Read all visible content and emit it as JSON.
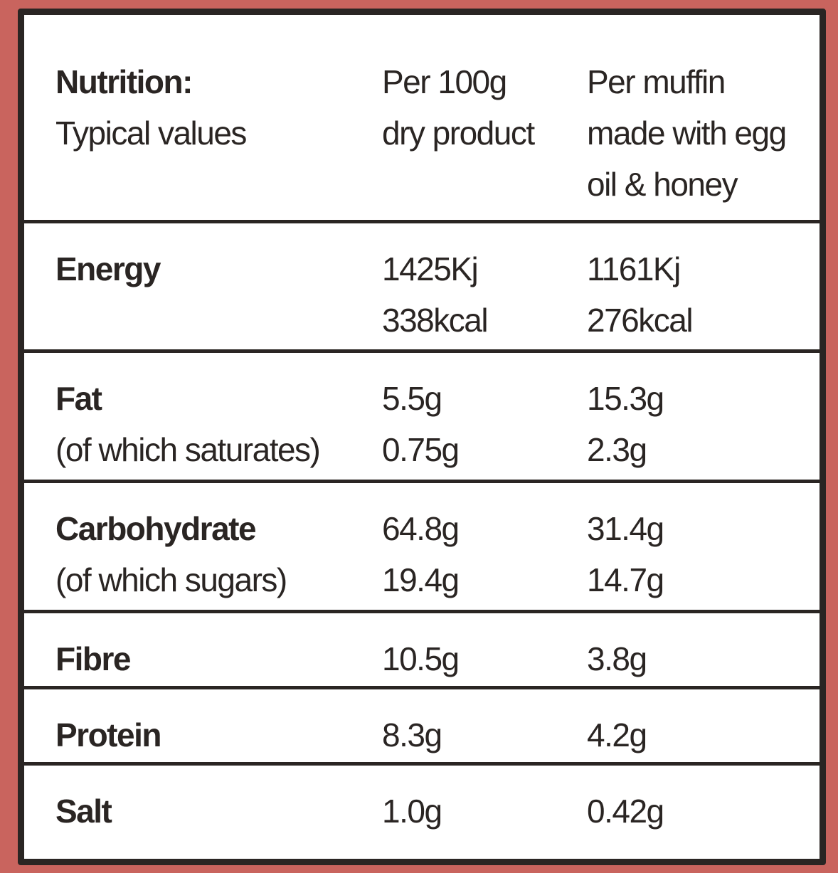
{
  "header": {
    "title": "Nutrition:",
    "subtitle": "Typical values",
    "columns": [
      [
        "Per 100g",
        "dry product"
      ],
      [
        "Per muffin",
        "made with egg",
        "oil & honey"
      ]
    ]
  },
  "rows": [
    {
      "label": "Energy",
      "values": [
        [
          "1425Kj",
          "338kcal"
        ],
        [
          "1161Kj",
          "276kcal"
        ]
      ]
    },
    {
      "label": "Fat",
      "sublabel": "(of which saturates)",
      "values": [
        [
          "5.5g",
          "0.75g"
        ],
        [
          "15.3g",
          "2.3g"
        ]
      ]
    },
    {
      "label": "Carbohydrate",
      "sublabel": "(of which sugars)",
      "values": [
        [
          "64.8g",
          "19.4g"
        ],
        [
          "31.4g",
          "14.7g"
        ]
      ]
    },
    {
      "label": "Fibre",
      "values": [
        [
          "10.5g"
        ],
        [
          "3.8g"
        ]
      ]
    },
    {
      "label": "Protein",
      "values": [
        [
          "8.3g"
        ],
        [
          "4.2g"
        ]
      ]
    },
    {
      "label": "Salt",
      "values": [
        [
          "1.0g"
        ],
        [
          "0.42g"
        ]
      ]
    }
  ]
}
